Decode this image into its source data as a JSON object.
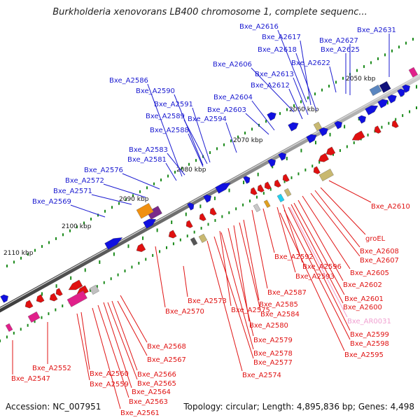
{
  "title": "Burkholderia xenovorans LB400 chromosome 1, complete sequenc...",
  "footer": {
    "accession": "Accession: NC_007951",
    "summary": "Topology: circular; Length: 4,895,836 bp; Genes: 4,498"
  },
  "colors": {
    "forward_label": "#1a1ad0",
    "reverse_label": "#e01414",
    "rna_label": "#f0a0d0",
    "backbone": "#8a8a8a",
    "forward_gene": "#1010e0",
    "reverse_gene": "#e01010"
  },
  "kbp_marks": [
    "2050 kbp",
    "2060 kbp",
    "2070 kbp",
    "2080 kbp",
    "2090 kbp",
    "2100 kbp",
    "2110 kbp"
  ],
  "forward_genes": [
    "Bxe_A2631",
    "Bxe_A2616",
    "Bxe_A2617",
    "Bxe_A2627",
    "Bxe_A2618",
    "Bxe_A2625",
    "Bxe_A2606",
    "Bxe_A2622",
    "Bxe_A2613",
    "Bxe_A2586",
    "Bxe_A2612",
    "Bxe_A2590",
    "Bxe_A2604",
    "Bxe_A2591",
    "Bxe_A2603",
    "Bxe_A2589",
    "Bxe_A2594",
    "Bxe_A2588",
    "Bxe_A2583",
    "Bxe_A2581",
    "Bxe_A2576",
    "Bxe_A2572",
    "Bxe_A2571",
    "Bxe_A2569"
  ],
  "reverse_genes": [
    "Bxe_A2610",
    "groEL",
    "Bxe_A2608",
    "Bxe_A2607",
    "Bxe_A2592",
    "Bxe_A2605",
    "Bxe_A2596",
    "Bxe_A2593",
    "Bxe_A2602",
    "Bxe_A2587",
    "Bxe_A2601",
    "Bxe_A2573",
    "Bxe_A2585",
    "Bxe_A2600",
    "Bxe_A2570",
    "Bxe_A2575",
    "Bxe_A2584",
    "Bxe_A2580",
    "Bxe_A2599",
    "Bxe_A2579",
    "Bxe_A2598",
    "Bxe_A2568",
    "Bxe_A2578",
    "Bxe_A2595",
    "Bxe_A2567",
    "Bxe_A2577",
    "Bxe_A2552",
    "Bxe_A2560",
    "Bxe_A2566",
    "Bxe_A2574",
    "Bxe_A2547",
    "Bxe_A2559",
    "Bxe_A2565",
    "Bxe_A2564",
    "Bxe_A2563",
    "Bxe_A2561"
  ],
  "rna_genes": [
    "Bxe_AR0031"
  ]
}
